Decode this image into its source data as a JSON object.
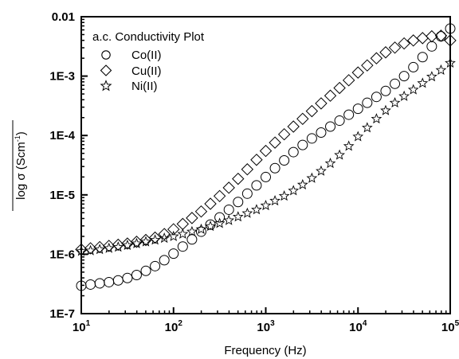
{
  "chart_data": {
    "type": "scatter",
    "title": "",
    "xlabel": "Frequency (Hz)",
    "ylabel_base": "log σ (Scm",
    "ylabel_sup": "-1",
    "ylabel_close": ")",
    "xscale": "log",
    "yscale": "log",
    "xlim": [
      10,
      100000
    ],
    "ylim": [
      1e-07,
      0.01
    ],
    "x_ticks": [
      {
        "base": "10",
        "exp": "1"
      },
      {
        "base": "10",
        "exp": "2"
      },
      {
        "base": "10",
        "exp": "3"
      },
      {
        "base": "10",
        "exp": "4"
      },
      {
        "base": "10",
        "exp": "5"
      }
    ],
    "y_ticks": [
      "0.01",
      "1E-3",
      "1E-4",
      "1E-5",
      "1E-6",
      "1E-7"
    ],
    "grid": false,
    "legend": {
      "title": "a.c. Conductivity Plot",
      "placement": "top-left",
      "entries": [
        "Co(II)",
        "Cu(II)",
        "Ni(II)"
      ]
    },
    "series": [
      {
        "name": "Co(II)",
        "marker": "circle",
        "x_log": [
          1.0,
          1.1,
          1.2,
          1.3,
          1.4,
          1.5,
          1.6,
          1.7,
          1.8,
          1.9,
          2.0,
          2.1,
          2.2,
          2.3,
          2.4,
          2.5,
          2.6,
          2.7,
          2.8,
          2.9,
          3.0,
          3.1,
          3.2,
          3.3,
          3.4,
          3.5,
          3.6,
          3.7,
          3.8,
          3.9,
          4.0,
          4.1,
          4.2,
          4.3,
          4.4,
          4.5,
          4.6,
          4.7,
          4.8,
          4.9,
          5.0
        ],
        "y_log": [
          -6.53,
          -6.51,
          -6.49,
          -6.47,
          -6.44,
          -6.4,
          -6.35,
          -6.28,
          -6.2,
          -6.1,
          -5.99,
          -5.87,
          -5.75,
          -5.62,
          -5.5,
          -5.38,
          -5.25,
          -5.12,
          -4.98,
          -4.84,
          -4.7,
          -4.55,
          -4.42,
          -4.28,
          -4.16,
          -4.05,
          -3.95,
          -3.85,
          -3.75,
          -3.65,
          -3.55,
          -3.45,
          -3.35,
          -3.25,
          -3.13,
          -3.0,
          -2.85,
          -2.68,
          -2.5,
          -2.33,
          -2.2
        ]
      },
      {
        "name": "Cu(II)",
        "marker": "diamond",
        "x_log": [
          1.0,
          1.1,
          1.2,
          1.3,
          1.4,
          1.5,
          1.6,
          1.7,
          1.8,
          1.9,
          2.0,
          2.1,
          2.2,
          2.3,
          2.4,
          2.5,
          2.6,
          2.7,
          2.8,
          2.9,
          3.0,
          3.1,
          3.2,
          3.3,
          3.4,
          3.5,
          3.6,
          3.7,
          3.8,
          3.9,
          4.0,
          4.1,
          4.2,
          4.3,
          4.4,
          4.5,
          4.6,
          4.7,
          4.8,
          4.9,
          5.0
        ],
        "y_log": [
          -5.92,
          -5.9,
          -5.88,
          -5.86,
          -5.84,
          -5.82,
          -5.79,
          -5.76,
          -5.72,
          -5.66,
          -5.58,
          -5.49,
          -5.39,
          -5.28,
          -5.15,
          -5.02,
          -4.88,
          -4.73,
          -4.57,
          -4.41,
          -4.26,
          -4.12,
          -3.98,
          -3.85,
          -3.72,
          -3.59,
          -3.46,
          -3.33,
          -3.2,
          -3.07,
          -2.94,
          -2.82,
          -2.7,
          -2.6,
          -2.52,
          -2.45,
          -2.4,
          -2.36,
          -2.33,
          -2.32,
          -2.4
        ]
      },
      {
        "name": "Ni(II)",
        "marker": "star",
        "x_log": [
          1.0,
          1.1,
          1.2,
          1.3,
          1.4,
          1.5,
          1.6,
          1.7,
          1.8,
          1.9,
          2.0,
          2.1,
          2.2,
          2.3,
          2.4,
          2.5,
          2.6,
          2.7,
          2.8,
          2.9,
          3.0,
          3.1,
          3.2,
          3.3,
          3.4,
          3.5,
          3.6,
          3.7,
          3.8,
          3.9,
          4.0,
          4.1,
          4.2,
          4.3,
          4.4,
          4.5,
          4.6,
          4.7,
          4.8,
          4.9,
          5.0
        ],
        "y_log": [
          -5.95,
          -5.94,
          -5.92,
          -5.9,
          -5.88,
          -5.85,
          -5.82,
          -5.79,
          -5.76,
          -5.73,
          -5.7,
          -5.66,
          -5.62,
          -5.58,
          -5.53,
          -5.48,
          -5.43,
          -5.37,
          -5.31,
          -5.25,
          -5.18,
          -5.1,
          -5.02,
          -4.93,
          -4.83,
          -4.72,
          -4.6,
          -4.47,
          -4.33,
          -4.18,
          -4.02,
          -3.87,
          -3.72,
          -3.58,
          -3.45,
          -3.34,
          -3.23,
          -3.12,
          -3.01,
          -2.9,
          -2.78
        ]
      }
    ]
  }
}
